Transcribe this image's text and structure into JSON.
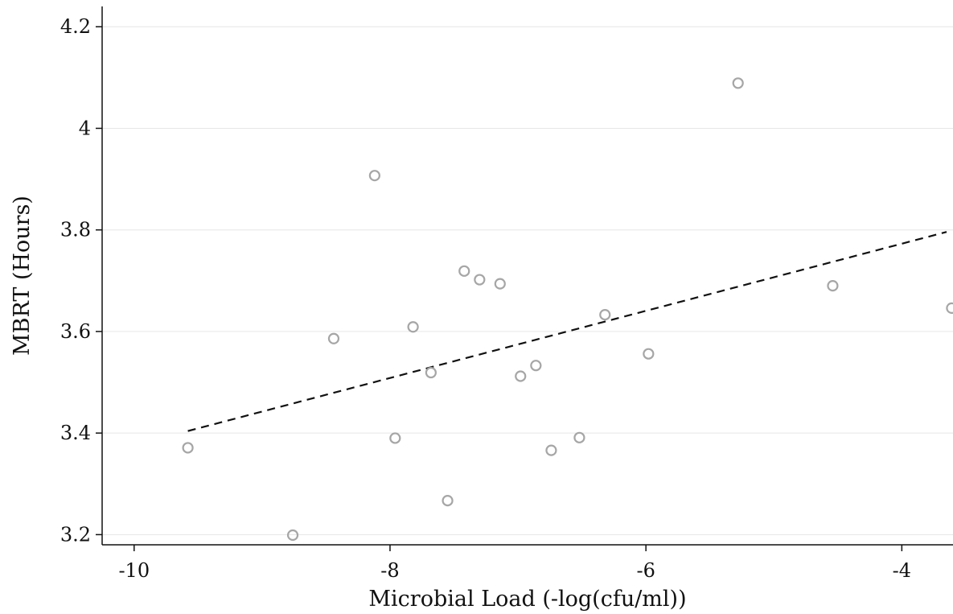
{
  "chart_data": {
    "type": "scatter",
    "title": "",
    "xlabel": "Microbial Load (-log(cfu/ml))",
    "ylabel": "MBRT (Hours)",
    "xlim": [
      -10.25,
      -3.6
    ],
    "ylim": [
      3.18,
      4.24
    ],
    "xticks": [
      -10,
      -8,
      -6,
      -4
    ],
    "yticks": [
      3.2,
      3.4,
      3.6,
      3.8,
      4.0,
      4.2
    ],
    "xtick_labels": [
      "-10",
      "-8",
      "-6",
      "-4"
    ],
    "ytick_labels": [
      "3.2",
      "3.4",
      "3.6",
      "3.8",
      "4",
      "4.2"
    ],
    "grid": "horizontal",
    "legend": "none",
    "point_color": "#a6a6a6",
    "fit_color": "#111111",
    "series": [
      {
        "kind": "scatter",
        "points": [
          {
            "x": -9.58,
            "y": 3.371
          },
          {
            "x": -8.76,
            "y": 3.199
          },
          {
            "x": -8.44,
            "y": 3.586
          },
          {
            "x": -8.12,
            "y": 3.907
          },
          {
            "x": -7.96,
            "y": 3.39
          },
          {
            "x": -7.82,
            "y": 3.609
          },
          {
            "x": -7.68,
            "y": 3.519
          },
          {
            "x": -7.55,
            "y": 3.267
          },
          {
            "x": -7.42,
            "y": 3.719
          },
          {
            "x": -7.3,
            "y": 3.702
          },
          {
            "x": -7.14,
            "y": 3.694
          },
          {
            "x": -6.98,
            "y": 3.512
          },
          {
            "x": -6.86,
            "y": 3.533
          },
          {
            "x": -6.74,
            "y": 3.366
          },
          {
            "x": -6.52,
            "y": 3.391
          },
          {
            "x": -6.32,
            "y": 3.633
          },
          {
            "x": -5.98,
            "y": 3.556
          },
          {
            "x": -5.28,
            "y": 4.089
          },
          {
            "x": -4.54,
            "y": 3.69
          },
          {
            "x": -3.61,
            "y": 3.646
          }
        ]
      },
      {
        "kind": "fit",
        "points": [
          {
            "x": -9.58,
            "y": 3.404
          },
          {
            "x": -3.65,
            "y": 3.796
          }
        ]
      }
    ]
  }
}
